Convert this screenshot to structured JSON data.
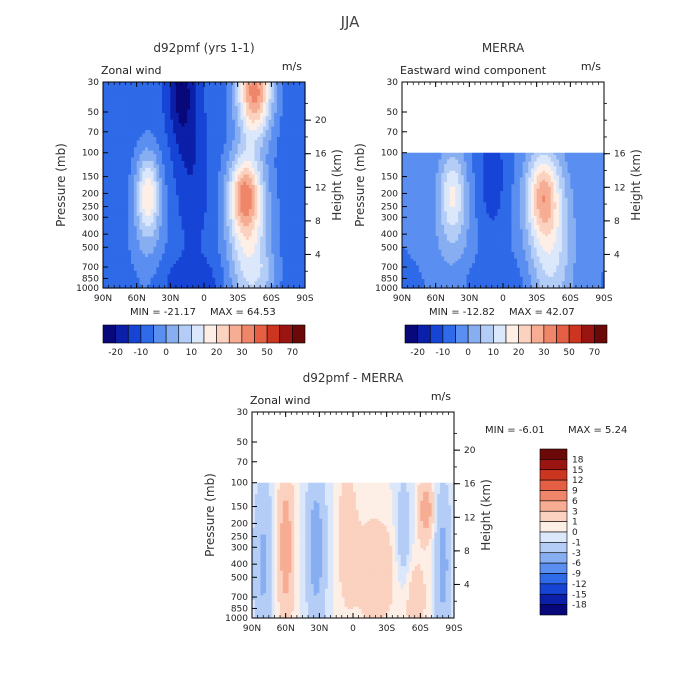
{
  "page_title": "JJA",
  "colors": {
    "blue_to_red": [
      "#08087a",
      "#0b1fa8",
      "#1645d6",
      "#2f6ae8",
      "#5a8ef0",
      "#88aef2",
      "#b4cdf6",
      "#dbe7fb",
      "#fdeee6",
      "#fbd1bf",
      "#f6ad93",
      "#ef8669",
      "#e45f43",
      "#cc3520",
      "#9a1512",
      "#6b0808"
    ],
    "frame": "#000000",
    "blank": "#ffffff"
  },
  "chart_data": [
    {
      "type": "heatmap",
      "id": "model",
      "title": "d92pmf (yrs 1-1)",
      "left_label": "Zonal wind",
      "units": "m/s",
      "xlabel": "",
      "ylabel": "Pressure (mb)",
      "y2label": "Height (km)",
      "x_ticks": [
        "90N",
        "60N",
        "30N",
        "0",
        "30S",
        "60S",
        "90S"
      ],
      "y_ticks": [
        "30",
        "50",
        "70",
        "100",
        "150",
        "200",
        "250",
        "300",
        "400",
        "500",
        "700",
        "850",
        "1000"
      ],
      "y2_ticks": [
        "20",
        "16",
        "12",
        "8",
        "4"
      ],
      "stats": {
        "min_text": "MIN = -21.17",
        "max_text": "MAX = 64.53"
      },
      "data_top_mb": 30,
      "colorbar": {
        "orientation": "horizontal",
        "tick_labels": [
          "-20",
          "-10",
          "0",
          "10",
          "20",
          "30",
          "50",
          "70"
        ],
        "n_bins": 16
      },
      "features": [
        {
          "kind": "minimum",
          "lat": 20,
          "mb": 30,
          "value": -21
        },
        {
          "kind": "maximum",
          "lat": -45,
          "mb": 35,
          "value": 64
        },
        {
          "kind": "maximum",
          "lat": -38,
          "mb": 200,
          "value": 35
        },
        {
          "kind": "maximum",
          "lat": 52,
          "mb": 200,
          "value": 14
        }
      ]
    },
    {
      "type": "heatmap",
      "id": "merra",
      "title": "MERRA",
      "left_label": "Eastward wind component",
      "units": "m/s",
      "xlabel": "",
      "ylabel": "Pressure (mb)",
      "y2label": "Height (km)",
      "x_ticks": [
        "90N",
        "60N",
        "30N",
        "0",
        "30S",
        "60S",
        "90S"
      ],
      "y_ticks": [
        "30",
        "50",
        "70",
        "100",
        "150",
        "200",
        "250",
        "300",
        "400",
        "500",
        "700",
        "850",
        "1000"
      ],
      "y2_ticks": [
        "16",
        "12",
        "8",
        "4"
      ],
      "stats": {
        "min_text": "MIN = -12.82",
        "max_text": "MAX = 42.07"
      },
      "data_top_mb": 100,
      "colorbar": {
        "orientation": "horizontal",
        "tick_labels": [
          "-20",
          "-10",
          "0",
          "10",
          "20",
          "30",
          "50",
          "70"
        ],
        "n_bins": 16
      },
      "features": [
        {
          "kind": "maximum",
          "lat": -35,
          "mb": 200,
          "value": 40
        },
        {
          "kind": "maximum",
          "lat": 45,
          "mb": 200,
          "value": 18
        },
        {
          "kind": "minimum",
          "lat": 10,
          "mb": 150,
          "value": -12
        }
      ]
    },
    {
      "type": "heatmap",
      "id": "diff",
      "title": "d92pmf - MERRA",
      "left_label": "Zonal wind",
      "units": "m/s",
      "xlabel": "",
      "ylabel": "Pressure (mb)",
      "y2label": "Height (km)",
      "x_ticks": [
        "90N",
        "60N",
        "30N",
        "0",
        "30S",
        "60S",
        "90S"
      ],
      "y_ticks": [
        "30",
        "50",
        "70",
        "100",
        "150",
        "200",
        "250",
        "300",
        "400",
        "500",
        "700",
        "850",
        "1000"
      ],
      "y2_ticks": [
        "20",
        "16",
        "12",
        "8",
        "4"
      ],
      "stats": {
        "min_text": "MIN =   -6.01",
        "max_text": "MAX =   5.24"
      },
      "data_top_mb": 100,
      "colorbar": {
        "orientation": "vertical",
        "tick_labels": [
          "18",
          "15",
          "12",
          "9",
          "6",
          "3",
          "1",
          "0",
          "-1",
          "-3",
          "-6",
          "-9",
          "-12",
          "-15",
          "-18"
        ],
        "n_bins": 16
      },
      "features": [
        {
          "kind": "maximum",
          "lat": 60,
          "mb": 300,
          "value": 5
        },
        {
          "kind": "maximum",
          "lat": -65,
          "mb": 150,
          "value": 5
        },
        {
          "kind": "minimum",
          "lat": 35,
          "mb": 300,
          "value": -6
        },
        {
          "kind": "minimum",
          "lat": -80,
          "mb": 500,
          "value": -5
        }
      ]
    }
  ]
}
